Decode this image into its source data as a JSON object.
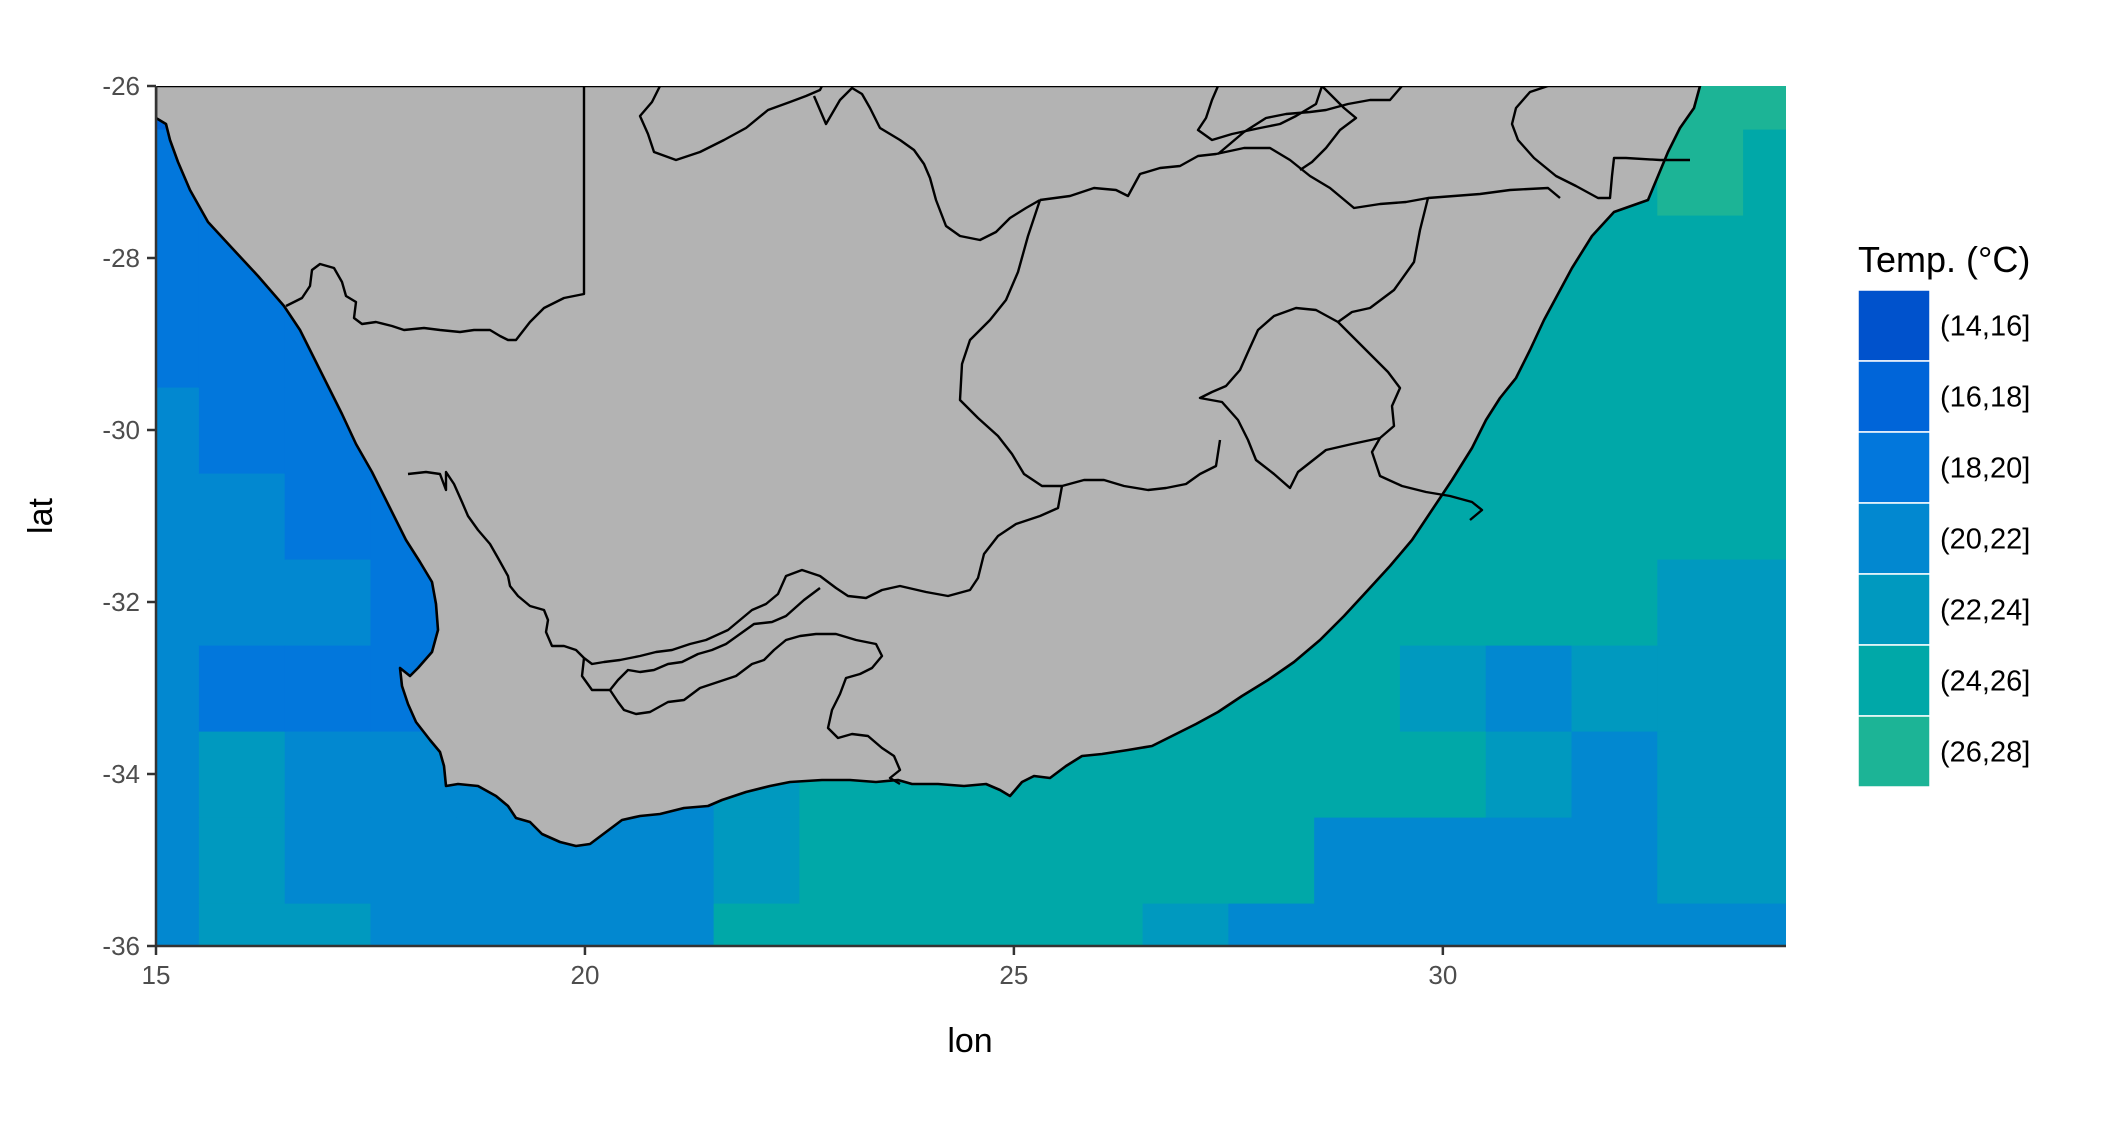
{
  "chart_data": {
    "type": "heatmap",
    "title": "",
    "xlabel": "lon",
    "ylabel": "lat",
    "xlim": [
      15,
      34
    ],
    "ylim": [
      -36,
      -26
    ],
    "x_ticks": [
      15,
      20,
      25,
      30
    ],
    "y_ticks": [
      -26,
      -28,
      -30,
      -32,
      -34,
      -36
    ],
    "legend": {
      "title": "Temp. (°C)",
      "position": "right",
      "entries": [
        {
          "label": "(14,16]",
          "color": "#0052CC"
        },
        {
          "label": "(16,18]",
          "color": "#0065D9"
        },
        {
          "label": "(18,20]",
          "color": "#0277DC"
        },
        {
          "label": "(20,22]",
          "color": "#0288D0"
        },
        {
          "label": "(22,24]",
          "color": "#0099BF"
        },
        {
          "label": "(24,26]",
          "color": "#00A8A8"
        },
        {
          "label": "(26,28]",
          "color": "#1CB496"
        }
      ]
    },
    "land_color": "#B3B3B3",
    "grid_cell_degrees": 1,
    "grid_origin": {
      "lon": 14.5,
      "lat": -36.5
    },
    "temperature_class_grid_note": "rows from lat -36 (south) to -26 (north); columns from lon 15 to 34; values are legend class indices 1-7",
    "temperature_class_grid": [
      [
        4,
        5,
        5,
        4,
        4,
        4,
        4,
        6,
        6,
        6,
        6,
        6,
        5,
        4,
        4,
        4,
        4,
        4,
        4,
        4
      ],
      [
        4,
        5,
        4,
        4,
        4,
        4,
        4,
        5,
        6,
        6,
        6,
        6,
        6,
        6,
        4,
        4,
        4,
        4,
        5,
        5
      ],
      [
        4,
        5,
        4,
        4,
        4,
        4,
        4,
        5,
        6,
        6,
        6,
        6,
        6,
        6,
        6,
        6,
        5,
        4,
        5,
        5
      ],
      [
        4,
        3,
        3,
        3,
        4,
        4,
        4,
        4,
        4,
        3,
        4,
        6,
        6,
        6,
        6,
        5,
        4,
        5,
        5,
        5
      ],
      [
        4,
        4,
        4,
        3,
        3,
        4,
        4,
        4,
        6,
        6,
        6,
        6,
        6,
        6,
        6,
        6,
        6,
        6,
        5,
        5
      ],
      [
        4,
        4,
        3,
        3,
        3,
        3,
        4,
        4,
        5,
        6,
        6,
        6,
        6,
        6,
        6,
        6,
        6,
        6,
        6,
        6
      ],
      [
        4,
        3,
        3,
        3,
        3,
        3,
        4,
        5,
        6,
        6,
        6,
        6,
        6,
        6,
        6,
        6,
        6,
        6,
        6,
        6
      ],
      [
        3,
        3,
        3,
        3,
        3,
        3,
        4,
        5,
        6,
        6,
        6,
        6,
        6,
        6,
        6,
        6,
        6,
        6,
        6,
        6
      ],
      [
        3,
        3,
        2,
        3,
        3,
        3,
        4,
        5,
        6,
        6,
        6,
        6,
        6,
        6,
        6,
        6,
        6,
        6,
        6,
        6
      ],
      [
        3,
        3,
        3,
        3,
        3,
        3,
        4,
        5,
        6,
        6,
        6,
        6,
        6,
        6,
        6,
        6,
        6,
        6,
        7,
        6
      ],
      [
        2,
        3,
        3,
        3,
        3,
        3,
        4,
        5,
        6,
        6,
        6,
        6,
        6,
        6,
        6,
        6,
        6,
        6,
        7,
        7
      ]
    ]
  }
}
